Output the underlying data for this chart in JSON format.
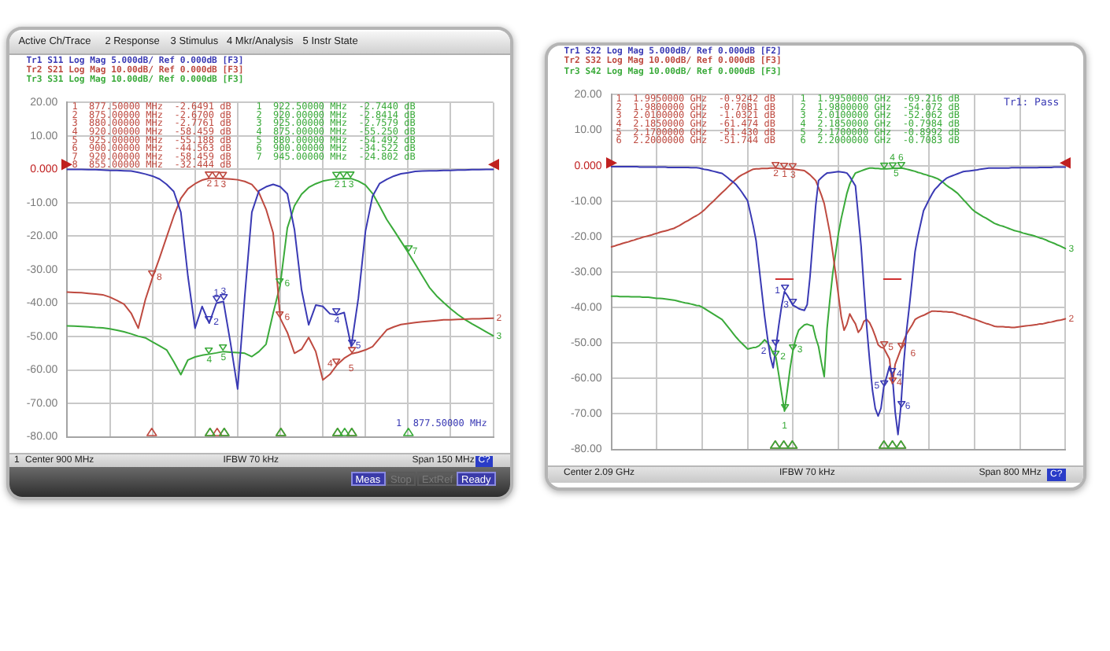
{
  "chart_data": [
    {
      "type": "line",
      "grid": true,
      "tick_labels": "y",
      "categories": [
        null,
        null,
        null,
        null,
        null,
        null,
        null,
        null,
        null,
        null,
        null,
        null,
        null,
        null,
        null,
        null,
        null,
        null,
        null,
        null,
        null,
        null,
        null,
        null,
        null,
        null,
        null,
        null,
        null,
        null,
        null,
        null,
        null,
        null,
        null,
        null,
        null,
        null,
        null,
        null,
        null,
        null,
        null,
        null,
        null,
        null,
        null,
        null,
        null,
        null,
        null,
        null,
        null,
        null,
        null,
        null,
        null,
        null,
        null,
        null,
        null
      ],
      "ylim": [
        -80,
        20
      ],
      "yticks": [
        {
          "value": 20,
          "label": "20.00"
        },
        {
          "value": 10,
          "label": "10.00"
        },
        {
          "value": 0,
          "label": "0.000"
        },
        {
          "value": -10,
          "label": "-10.00"
        },
        {
          "value": -20,
          "label": "-20.00"
        },
        {
          "value": -30,
          "label": "-30.00"
        },
        {
          "value": -40,
          "label": "-40.00"
        },
        {
          "value": -50,
          "label": "-50.00"
        },
        {
          "value": -60,
          "label": "-60.00"
        },
        {
          "value": -70,
          "label": "-70.00"
        },
        {
          "value": -80,
          "label": "-80.00"
        }
      ],
      "series": [
        {
          "name": "Tr1 S11 Log Mag 5.000dB/ Ref 0.000dB [F3]",
          "color": "#3a3ab4",
          "values": [
            0,
            0,
            0,
            -0.1,
            -0.1,
            -0.2,
            -0.3,
            -0.3,
            -0.4,
            -0.5,
            -0.9,
            -1.4,
            -2,
            -2.9,
            -4.5,
            -6.6,
            -12.8,
            -32,
            -47.5,
            -41,
            -46,
            -40,
            -39.5,
            -52,
            -65.7,
            -38,
            -12.8,
            -6.4,
            -5.2,
            -4.5,
            -5.2,
            -7.3,
            -18,
            -36,
            -46.5,
            -40.6,
            -41,
            -43.2,
            -43.5,
            -42.8,
            -53,
            -38.5,
            -18.5,
            -8,
            -4.2,
            -3,
            -2,
            -1.3,
            -1,
            -0.6,
            -0.5,
            -0.4,
            -0.4,
            -0.3,
            -0.3,
            -0.2,
            -0.2,
            -0.1,
            -0.1,
            0,
            0
          ]
        },
        {
          "name": "Tr2 S21 Log Mag 10.00dB/ Ref 0.000dB [F3]",
          "color": "#be4a40",
          "values": [
            -36.7,
            -36.8,
            -36.9,
            -37.1,
            -37.3,
            -37.5,
            -38.2,
            -39.2,
            -40.3,
            -43,
            -47.5,
            -39,
            -32.444,
            -26.5,
            -20.2,
            -14,
            -8.7,
            -5.8,
            -4.3,
            -3.2,
            -2.67,
            -2.6491,
            -2.7761,
            -2.9,
            -3.1,
            -3.6,
            -4.5,
            -7,
            -11.9,
            -19,
            -44.563,
            -48.8,
            -55,
            -53.8,
            -50.3,
            -54.5,
            -63,
            -61.3,
            -58.459,
            -56.5,
            -55.188,
            -54.7,
            -54,
            -53,
            -50.5,
            -48,
            -47.1,
            -46.4,
            -46.1,
            -45.8,
            -45.6,
            -45.4,
            -45.2,
            -45,
            -45,
            -44.9,
            -44.8,
            -44.7,
            -44.7,
            -44.6,
            -44.5
          ]
        },
        {
          "name": "Tr3 S31 Log Mag 10.00dB/ Ref 0.000dB [F3]",
          "color": "#3aaa3a",
          "values": [
            -46.8,
            -46.9,
            -47,
            -47.1,
            -47.3,
            -47.4,
            -47.7,
            -48.1,
            -48.6,
            -49.2,
            -49.9,
            -50.4,
            -51.6,
            -52.8,
            -54,
            -57.5,
            -61.4,
            -57,
            -56.1,
            -55.6,
            -55.25,
            -54.9,
            -54.492,
            -54.7,
            -54.8,
            -55,
            -56,
            -54.5,
            -52.3,
            -43,
            -34.522,
            -17.5,
            -10.9,
            -7.4,
            -5.4,
            -4.3,
            -3.5,
            -3.1,
            -2.8414,
            -2.744,
            -2.7579,
            -3.5,
            -4.7,
            -7.2,
            -11,
            -15,
            -18.2,
            -21.5,
            -24.802,
            -28.3,
            -31.8,
            -35.3,
            -37.8,
            -39.8,
            -41.7,
            -43.4,
            -44.9,
            -46.2,
            -47.4,
            -48.6,
            -49.8
          ]
        }
      ],
      "annotations": [
        "Active Ch/Trace",
        "2 Response",
        "3 Stimulus",
        "4 Mkr/Analysis",
        "5 Instr State",
        "1  877.50000 MHz  -2.6491 dB",
        "2  875.00000 MHz  -2.6700 dB",
        "3  880.00000 MHz  -2.7761 dB",
        "4  920.00000 MHz  -58.459 dB",
        "5  925.00000 MHz  -55.188 dB",
        "6  900.00000 MHz  -44.563 dB",
        "7  920.00000 MHz  -58.459 dB",
        "8  855.00000 MHz  -32.444 dB",
        "1  922.50000 MHz  -2.7440 dB",
        "2  920.00000 MHz  -2.8414 dB",
        "3  925.00000 MHz  -2.7579 dB",
        "4  875.00000 MHz  -55.250 dB",
        "5  880.00000 MHz  -54.492 dB",
        "6  900.00000 MHz  -34.522 dB",
        "7  945.00000 MHz  -24.802 dB",
        "1  877.50000 MHz",
        "1",
        "Center 900 MHz",
        "IFBW 70 kHz",
        "Span 150 MHz",
        "C?",
        "Meas",
        "Stop",
        "ExtRef",
        "Ready",
        {
          "text": "2",
          "y": -46
        },
        {
          "text": "1",
          "y": -40
        },
        {
          "text": "3",
          "y": -39.5
        },
        {
          "text": "4",
          "y": -43.5
        },
        {
          "text": "5",
          "y": -53
        },
        {
          "text": "8",
          "y": -32.444
        },
        {
          "text": "2",
          "y": -2.67
        },
        {
          "text": "1",
          "y": -2.6491
        },
        {
          "text": "3",
          "y": -2.7761
        },
        {
          "text": "6",
          "y": -44.563
        },
        {
          "text": "4",
          "y": -58.459
        },
        {
          "text": "5",
          "y": -55.188
        },
        {
          "text": "2",
          "y": -44.5
        },
        {
          "text": "4",
          "y": -55.25
        },
        {
          "text": "5",
          "y": -54.492
        },
        {
          "text": "6",
          "y": -34.522
        },
        {
          "text": "2",
          "y": -2.8414
        },
        {
          "text": "1",
          "y": -2.744
        },
        {
          "text": "3",
          "y": -2.7579
        },
        {
          "text": "7",
          "y": -24.802
        },
        {
          "text": "3",
          "y": -49.8
        }
      ]
    },
    {
      "type": "line",
      "grid": true,
      "tick_labels": "y",
      "categories": [
        null,
        null,
        null,
        null,
        null,
        null,
        null,
        null,
        null,
        null,
        null,
        null,
        null,
        null,
        null,
        null,
        null,
        null,
        null,
        null,
        null,
        null,
        null,
        null,
        null,
        null,
        null,
        null,
        null,
        null,
        null,
        null,
        null,
        null,
        null,
        null,
        null,
        null,
        null,
        null,
        null,
        null,
        null,
        null,
        null,
        null,
        null,
        null,
        null,
        null,
        null,
        null,
        null,
        null,
        null,
        null,
        null,
        null,
        null,
        null,
        null,
        null,
        null,
        null,
        null,
        null,
        null,
        null,
        null,
        null,
        null,
        null,
        null,
        null,
        null,
        null,
        null,
        null,
        null,
        null,
        null,
        null,
        null,
        null,
        null,
        null,
        null,
        null,
        null,
        null,
        null,
        null,
        null,
        null,
        null,
        null,
        null,
        null,
        null,
        null,
        null,
        null,
        null,
        null,
        null,
        null,
        null,
        null,
        null,
        null,
        null,
        null,
        null,
        null,
        null,
        null,
        null,
        null,
        null,
        null,
        null,
        null,
        null,
        null,
        null,
        null,
        null,
        null,
        null,
        null,
        null,
        null,
        null,
        null,
        null,
        null,
        null,
        null,
        null,
        null,
        null,
        null,
        null,
        null,
        null,
        null,
        null,
        null,
        null,
        null,
        null,
        null,
        null,
        null,
        null,
        null,
        null,
        null,
        null,
        null,
        null
      ],
      "ylim": [
        -80,
        20
      ],
      "yticks": [
        {
          "value": 20,
          "label": "20.00"
        },
        {
          "value": 10,
          "label": "10.00"
        },
        {
          "value": 0,
          "label": "0.000"
        },
        {
          "value": -10,
          "label": "-10.00"
        },
        {
          "value": -20,
          "label": "-20.00"
        },
        {
          "value": -30,
          "label": "-30.00"
        },
        {
          "value": -40,
          "label": "-40.00"
        },
        {
          "value": -50,
          "label": "-50.00"
        },
        {
          "value": -60,
          "label": "-60.00"
        },
        {
          "value": -70,
          "label": "-70.00"
        },
        {
          "value": -80,
          "label": "-80.00"
        }
      ],
      "series": [
        {
          "name": "Tr1 S22 Log Mag 5.000dB/ Ref 0.000dB [F2]",
          "color": "#3a3ab4",
          "values": [
            -0.3,
            -0.3,
            -0.3,
            -0.3,
            -0.3,
            -0.3,
            -0.3,
            -0.3,
            -0.3,
            -0.3,
            -0.4,
            -0.4,
            -0.4,
            -0.4,
            -0.4,
            -0.4,
            -0.4,
            -0.4,
            -0.4,
            -0.4,
            -0.5,
            -0.5,
            -0.5,
            -0.5,
            -0.5,
            -0.5,
            -0.5,
            -0.5,
            -0.6,
            -0.6,
            -0.6,
            -0.7,
            -0.9,
            -1.1,
            -1.2,
            -1.4,
            -1.6,
            -1.8,
            -2,
            -2.2,
            -2.8,
            -3.4,
            -4.1,
            -4.7,
            -5.4,
            -6.4,
            -7.5,
            -8.7,
            -9.9,
            -13.4,
            -17,
            -21.2,
            -28.3,
            -35.4,
            -42.5,
            -48.5,
            -53.8,
            -57,
            -51,
            -45,
            -39.5,
            -35.5,
            -36.6,
            -38,
            -39.4,
            -39.8,
            -40.3,
            -40.6,
            -40.8,
            -39.2,
            -31.3,
            -21.2,
            -11.3,
            -4.2,
            -3.4,
            -2.7,
            -2.1,
            -2,
            -1.9,
            -1.8,
            -1.7,
            -1.8,
            -1.9,
            -2.1,
            -3.1,
            -4.4,
            -5.7,
            -14.2,
            -22.7,
            -34.5,
            -45.6,
            -54.9,
            -63.3,
            -68.5,
            -70.6,
            -68.4,
            -62.3,
            -59.5,
            -56.6,
            -59,
            -69.4,
            -75.8,
            -68,
            -55.9,
            -46.7,
            -39.6,
            -32.1,
            -24.3,
            -19.9,
            -16.3,
            -12.7,
            -11.1,
            -9.5,
            -8,
            -6.7,
            -5.9,
            -5,
            -4.3,
            -3.6,
            -3.2,
            -2.9,
            -2.6,
            -2.3,
            -2,
            -1.7,
            -1.6,
            -1.5,
            -1.4,
            -1.3,
            -1.2,
            -1,
            -0.9,
            -0.8,
            -0.7,
            -0.7,
            -0.7,
            -0.7,
            -0.7,
            -0.7,
            -0.7,
            -0.7,
            -0.6,
            -0.6,
            -0.6,
            -0.6,
            -0.6,
            -0.6,
            -0.6,
            -0.6,
            -0.6,
            -0.6,
            -0.5,
            -0.5,
            -0.5,
            -0.5,
            -0.5,
            -0.4,
            -0.4,
            -0.4,
            -0.4,
            -0.4
          ]
        },
        {
          "name": "Tr2 S32 Log Mag 10.00dB/ Ref 0.000dB [F3]",
          "color": "#be4a40",
          "values": [
            -22.9,
            -22.7,
            -22.4,
            -22.2,
            -21.9,
            -21.7,
            -21.5,
            -21.2,
            -21,
            -20.7,
            -20.5,
            -20.2,
            -20,
            -19.8,
            -19.6,
            -19.3,
            -19.1,
            -18.8,
            -18.6,
            -18.4,
            -18.2,
            -17.9,
            -17.7,
            -17.3,
            -16.9,
            -16.4,
            -15.9,
            -15.5,
            -15,
            -14.5,
            -14.1,
            -13.6,
            -13,
            -12.3,
            -11.5,
            -10.7,
            -10,
            -9.2,
            -8.4,
            -7.6,
            -6.9,
            -6.1,
            -5.3,
            -4.5,
            -3.8,
            -3.1,
            -2.6,
            -2.2,
            -1.8,
            -1.4,
            -1,
            -0.9,
            -0.9,
            -0.8,
            -0.8,
            -0.8,
            -0.7,
            -0.7,
            -0.7081,
            -0.8,
            -0.9,
            -0.9242,
            -0.95,
            -1,
            -1.0321,
            -1.1,
            -1.2,
            -1.3,
            -1.4,
            -2,
            -2.6,
            -3.4,
            -4.2,
            -6.2,
            -8.3,
            -10.7,
            -14.8,
            -19,
            -24.5,
            -30.3,
            -36.4,
            -42.6,
            -46.4,
            -44.7,
            -41.8,
            -43.3,
            -44.6,
            -47,
            -46,
            -43.9,
            -43.4,
            -44.3,
            -46,
            -48.1,
            -50.5,
            -51.2,
            -51.43,
            -53,
            -54.5,
            -61.474,
            -56,
            -53.9,
            -51.744,
            -49.4,
            -47.5,
            -46.2,
            -44.9,
            -43.4,
            -42.9,
            -42.5,
            -42.2,
            -41.8,
            -41.4,
            -41,
            -41,
            -41.1,
            -41.1,
            -41.2,
            -41.2,
            -41.3,
            -41.3,
            -41.5,
            -41.8,
            -42,
            -42.3,
            -42.5,
            -42.8,
            -43.1,
            -43.3,
            -43.6,
            -43.9,
            -44.2,
            -44.5,
            -44.7,
            -45,
            -45.3,
            -45.4,
            -45.4,
            -45.4,
            -45.5,
            -45.5,
            -45.6,
            -45.6,
            -45.5,
            -45.4,
            -45.3,
            -45.2,
            -45.1,
            -45,
            -44.9,
            -44.8,
            -44.6,
            -44.6,
            -44.4,
            -44.2,
            -44.1,
            -43.9,
            -43.7,
            -43.6,
            -43.4,
            -43.2
          ]
        },
        {
          "name": "Tr3 S42 Log Mag 10.00dB/ Ref 0.000dB [F3]",
          "color": "#3aaa3a",
          "values": [
            -36.8,
            -36.8,
            -36.8,
            -36.9,
            -36.9,
            -36.9,
            -36.9,
            -37,
            -37,
            -37,
            -37,
            -37.1,
            -37.1,
            -37.1,
            -37.2,
            -37.3,
            -37.4,
            -37.4,
            -37.5,
            -37.6,
            -37.7,
            -37.8,
            -37.9,
            -38.1,
            -38.3,
            -38.5,
            -38.7,
            -38.8,
            -39,
            -39.2,
            -39.4,
            -39.5,
            -39.9,
            -40.4,
            -40.9,
            -41.4,
            -41.9,
            -42.4,
            -42.9,
            -43.4,
            -44.4,
            -45.4,
            -46.4,
            -47.4,
            -48.4,
            -49.3,
            -50.1,
            -50.9,
            -51.7,
            -51.5,
            -51.3,
            -51.2,
            -50.8,
            -50,
            -49.1,
            -49.9,
            -51.2,
            -52.9,
            -54.072,
            -59,
            -64.2,
            -69.216,
            -63.3,
            -57,
            -52.062,
            -48.7,
            -46.4,
            -45.6,
            -44.9,
            -44.7,
            -45,
            -45.2,
            -48.5,
            -51,
            -55.5,
            -59.5,
            -46,
            -37.8,
            -30.4,
            -24.8,
            -19.2,
            -14.9,
            -11.4,
            -7.8,
            -5.2,
            -3.5,
            -2.1,
            -1.8,
            -1.5,
            -1.2,
            -0.9,
            -0.7,
            -0.7,
            -0.8,
            -0.8,
            -0.9,
            -0.8992,
            -0.9,
            -0.85,
            -0.7984,
            -0.75,
            -0.72,
            -0.7083,
            -0.8,
            -1,
            -1.2,
            -1.4,
            -1.6,
            -1.9,
            -2.1,
            -2.4,
            -2.6,
            -2.9,
            -3.1,
            -3.4,
            -3.7,
            -4.2,
            -4.8,
            -5.5,
            -6.1,
            -6.6,
            -7.2,
            -7.8,
            -8.7,
            -9.6,
            -10.4,
            -11.3,
            -12.2,
            -12.9,
            -13.4,
            -13.9,
            -14.4,
            -14.8,
            -15.3,
            -15.8,
            -16.3,
            -16.6,
            -16.9,
            -17.1,
            -17.4,
            -17.7,
            -18,
            -18.3,
            -18.5,
            -18.7,
            -19,
            -19.2,
            -19.4,
            -19.6,
            -19.8,
            -20.1,
            -20.4,
            -20.6,
            -20.9,
            -21.3,
            -21.6,
            -21.9,
            -22.3,
            -22.6,
            -23,
            -23.4
          ]
        },
        {
          "type": "line",
          "color": "#d03030",
          "values": [
            null,
            null,
            null,
            null,
            null,
            null,
            null,
            null,
            null,
            null,
            null,
            null,
            null,
            null,
            null,
            null,
            null,
            null,
            null,
            null,
            null,
            null,
            null,
            null,
            null,
            null,
            null,
            null,
            null,
            null,
            null,
            null,
            null,
            null,
            null,
            null,
            null,
            null,
            null,
            null,
            null,
            null,
            null,
            null,
            null,
            null,
            null,
            null,
            null,
            null,
            null,
            null,
            null,
            null,
            null,
            null,
            null,
            null,
            -32,
            -32,
            -32,
            -32,
            -32,
            -32,
            -32,
            null,
            null,
            null,
            null,
            null,
            null,
            null,
            null,
            null,
            null,
            null,
            null,
            null,
            null,
            null,
            null,
            null,
            null,
            null,
            null,
            null,
            null,
            null,
            null,
            null,
            null,
            null,
            null,
            null,
            null,
            null,
            -32,
            -32,
            -32,
            -32,
            -32,
            -32,
            -32,
            null,
            null,
            null,
            null,
            null,
            null,
            null,
            null,
            null,
            null,
            null,
            null,
            null,
            null,
            null,
            null,
            null,
            null,
            null,
            null,
            null,
            null,
            null,
            null,
            null,
            null,
            null,
            null,
            null,
            null,
            null,
            null,
            null,
            null,
            null,
            null,
            null,
            null,
            null,
            null,
            null,
            null,
            null,
            null,
            null,
            null,
            null,
            null,
            null,
            null,
            null,
            null,
            null,
            null,
            null,
            null,
            null,
            null
          ]
        }
      ],
      "annotations": [
        "1  1.9950000 GHz  -0.9242 dB",
        "2  1.9800000 GHz  -0.7081 dB",
        "3  2.0100000 GHz  -1.0321 dB",
        "4  2.1850000 GHz  -61.474 dB",
        "5  2.1700000 GHz  -51.430 dB",
        "6  2.2000000 GHz  -51.744 dB",
        "1  1.9950000 GHz  -69.216 dB",
        "2  1.9800000 GHz  -54.072 dB",
        "3  2.0100000 GHz  -52.062 dB",
        "4  2.1850000 GHz  -0.7984 dB",
        "5  2.1700000 GHz  -0.8992 dB",
        "6  2.2000000 GHz  -0.7083 dB",
        "Tr1: Pass",
        "Center 2.09 GHz",
        "IFBW 70 kHz",
        "Span 800 MHz",
        "C?",
        {
          "text": "2",
          "y": -51
        },
        {
          "text": "1",
          "y": -35.5
        },
        {
          "text": "3",
          "y": -39.4
        },
        {
          "text": "5",
          "y": -62.3
        },
        {
          "text": "4",
          "y": -59
        },
        {
          "text": "6",
          "y": -68
        },
        {
          "text": "2",
          "y": -0.7081
        },
        {
          "text": "1",
          "y": -0.9242
        },
        {
          "text": "3",
          "y": -1.0321
        },
        {
          "text": "5",
          "y": -51.43
        },
        {
          "text": "4",
          "y": -61.474
        },
        {
          "text": "6",
          "y": -51.744
        },
        {
          "text": "2",
          "y": -43.2
        },
        {
          "text": "2",
          "y": -54.072
        },
        {
          "text": "1",
          "y": -69.216
        },
        {
          "text": "3",
          "y": -52.062
        },
        {
          "text": "5",
          "y": -0.8992
        },
        {
          "text": "4",
          "y": -0.7984
        },
        {
          "text": "6",
          "y": -0.7083
        },
        {
          "text": "3",
          "y": -23.4
        }
      ]
    }
  ]
}
